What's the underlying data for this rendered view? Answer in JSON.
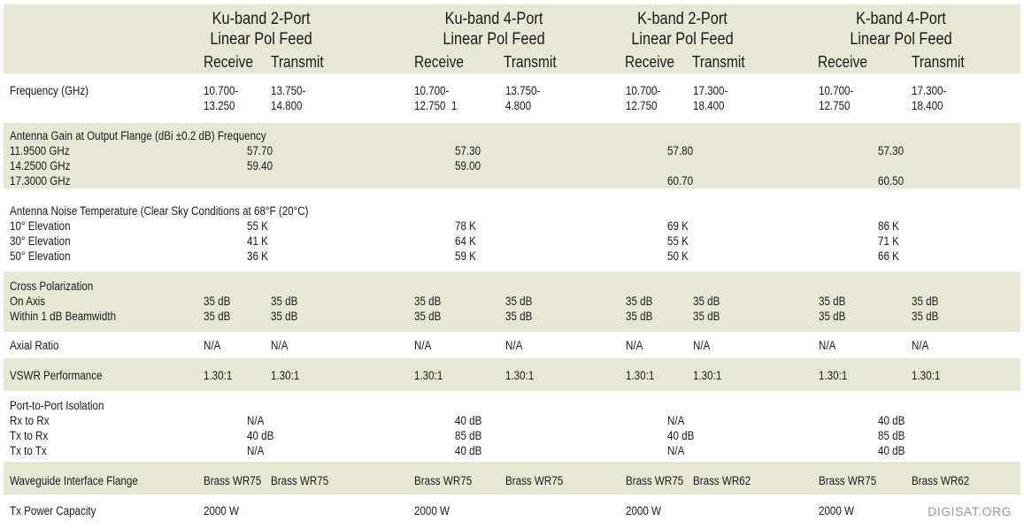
{
  "header": {
    "groups": [
      {
        "line1": "Ku-band 2-Port",
        "line2": "Linear Pol Feed",
        "receive": "Receive",
        "transmit": "Transmit"
      },
      {
        "line1": "Ku-band 4-Port",
        "line2": "Linear Pol Feed",
        "receive": "Receive",
        "transmit": "Transmit"
      },
      {
        "line1": "K-band 2-Port",
        "line2": "Linear Pol Feed",
        "receive": "Receive",
        "transmit": "Transmit"
      },
      {
        "line1": "K-band 4-Port",
        "line2": "Linear Pol Feed",
        "receive": "Receive",
        "transmit": "Transmit"
      }
    ]
  },
  "rows": {
    "frequency": {
      "label": "Frequency (GHz)",
      "cells": [
        "10.700-\n13.250",
        "13.750-\n14.800",
        "10.700-\n12.750  1",
        "13.750-\n4.800",
        "10.700-\n12.750",
        "17.300-\n18.400",
        "10.700-\n12.750",
        "17.300-\n18.400"
      ]
    },
    "gain": {
      "label": "Antenna Gain at Output Flange (dBi ±0.2 dB) Frequency\n11.9500 GHz\n14.2500 GHz\n17.3000 GHz",
      "cells": [
        "57.70\n59.40",
        "57.30\n59.00",
        "57.80\n\n60.70",
        "57.30\n\n60.50"
      ]
    },
    "noise": {
      "label": "Antenna Noise Temperature (Clear Sky Conditions at 68°F (20°C)\n10° Elevation\n30° Elevation\n50° Elevation",
      "cells": [
        "\n55 K\n41 K\n36 K",
        "\n78 K\n64 K\n59 K",
        "\n69 K\n55 K\n50 K",
        "\n86 K\n71 K\n66 K"
      ]
    },
    "xpol": {
      "label": "Cross Polarization\nOn Axis\nWithin 1 dB Beamwidth",
      "cells": [
        "\n35 dB\n35 dB",
        "\n35 dB\n35 dB",
        "\n35 dB\n35 dB",
        "\n35 dB\n35 dB",
        "\n35 dB\n35 dB",
        "\n35 dB\n35 dB",
        "\n35 dB\n35 dB",
        "\n35 dB\n35 dB"
      ]
    },
    "axial": {
      "label": "Axial Ratio",
      "cells": [
        "N/A",
        "N/A",
        "N/A",
        "N/A",
        "N/A",
        "N/A",
        "N/A",
        "N/A"
      ]
    },
    "vswr": {
      "label": "VSWR Performance",
      "cells": [
        "1.30:1",
        "1.30:1",
        "1.30:1",
        "1.30:1",
        "1.30:1",
        "1.30:1",
        "1.30:1",
        "1.30:1"
      ]
    },
    "isolation": {
      "label": "Port-to-Port Isolation\nRx to Rx\nTx to Rx\nTx to Tx",
      "cells": [
        "\nN/A\n40 dB\nN/A",
        "\n40 dB\n85 dB\n40 dB",
        "\nN/A\n40 dB\nN/A",
        "\n40 dB\n85 dB\n40 dB"
      ]
    },
    "flange": {
      "label": "Waveguide Interface Flange",
      "cells": [
        "Brass WR75",
        "Brass WR75",
        "Brass WR75",
        "Brass WR75",
        "Brass WR75",
        "Brass WR62",
        "Brass WR75",
        "Brass WR62"
      ]
    },
    "power": {
      "label": "Tx Power Capacity",
      "cells": [
        "2000 W",
        "2000 W",
        "2000 W",
        "2000 W"
      ]
    }
  },
  "watermark": "DIGISAT.ORG"
}
